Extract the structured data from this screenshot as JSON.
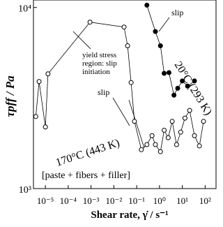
{
  "chart_data": {
    "type": "line",
    "xscale": "log",
    "yscale": "log",
    "x_label": "Shear rate, γ̇ / s⁻¹",
    "y_label": "τpff / Pa",
    "xlim": [
      3e-06,
      300
    ],
    "ylim": [
      1000,
      11000
    ],
    "xticks": [
      {
        "value": 1e-05,
        "label": "10⁻⁵"
      },
      {
        "value": 0.0001,
        "label": "10⁻⁴"
      },
      {
        "value": 0.001,
        "label": "10⁻³"
      },
      {
        "value": 0.01,
        "label": "10⁻²"
      },
      {
        "value": 0.1,
        "label": "10⁻¹"
      },
      {
        "value": 1,
        "label": "10⁰"
      },
      {
        "value": 10,
        "label": "10¹"
      },
      {
        "value": 100,
        "label": "10²"
      }
    ],
    "yticks": [
      {
        "value": 1000,
        "label": "10³"
      },
      {
        "value": 10000,
        "label": "10⁴"
      }
    ],
    "series": [
      {
        "name": "170°C (443 K)",
        "color": "#000000",
        "marker_fill": "#ffffff",
        "x": [
          3.8e-06,
          5.3e-06,
          1e-05,
          1.3e-05,
          0.0009,
          0.028,
          0.04,
          0.057,
          0.08,
          0.16,
          0.28,
          0.47,
          0.66,
          1.1,
          1.6,
          2.4,
          3.6,
          5.6,
          8.5,
          13,
          21,
          34,
          56,
          85
        ],
        "values": [
          2500,
          3900,
          2190,
          4300,
          8300,
          7800,
          6150,
          3850,
          2350,
          1640,
          1750,
          1960,
          1750,
          1600,
          2100,
          1910,
          2350,
          1750,
          2050,
          2450,
          2700,
          1960,
          1720,
          2350
        ]
      },
      {
        "name": "20°C (293 K)",
        "color": "#000000",
        "marker_fill": "#000000",
        "x": [
          0.28,
          0.66,
          1.1,
          1.6,
          2.6,
          4.3,
          6.3,
          10,
          17,
          34
        ],
        "values": [
          10300,
          7370,
          6150,
          4330,
          4370,
          3280,
          3580,
          3930,
          3680,
          3930
        ]
      }
    ],
    "annotations": [
      "slip",
      "yield stress",
      "region: slip",
      "initiation",
      "slip",
      "[paste + fibers + filler]"
    ]
  }
}
